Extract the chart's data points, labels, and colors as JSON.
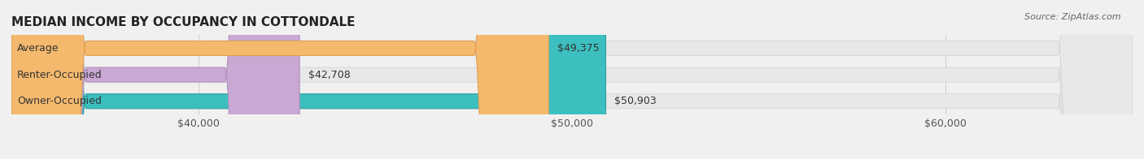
{
  "title": "MEDIAN INCOME BY OCCUPANCY IN COTTONDALE",
  "source": "Source: ZipAtlas.com",
  "categories": [
    "Owner-Occupied",
    "Renter-Occupied",
    "Average"
  ],
  "values": [
    50903,
    42708,
    49375
  ],
  "bar_colors": [
    "#3dbfbf",
    "#c9a8d4",
    "#f5b96e"
  ],
  "bar_edge_colors": [
    "#2aa0a0",
    "#b090bc",
    "#e0a050"
  ],
  "labels": [
    "$50,903",
    "$42,708",
    "$49,375"
  ],
  "xlim": [
    35000,
    65000
  ],
  "xticks": [
    40000,
    50000,
    60000
  ],
  "xtick_labels": [
    "$40,000",
    "$50,000",
    "$60,000"
  ],
  "background_color": "#f0f0f0",
  "bar_bg_color": "#e8e8e8",
  "title_fontsize": 11,
  "tick_fontsize": 9,
  "label_fontsize": 9,
  "bar_height": 0.55
}
